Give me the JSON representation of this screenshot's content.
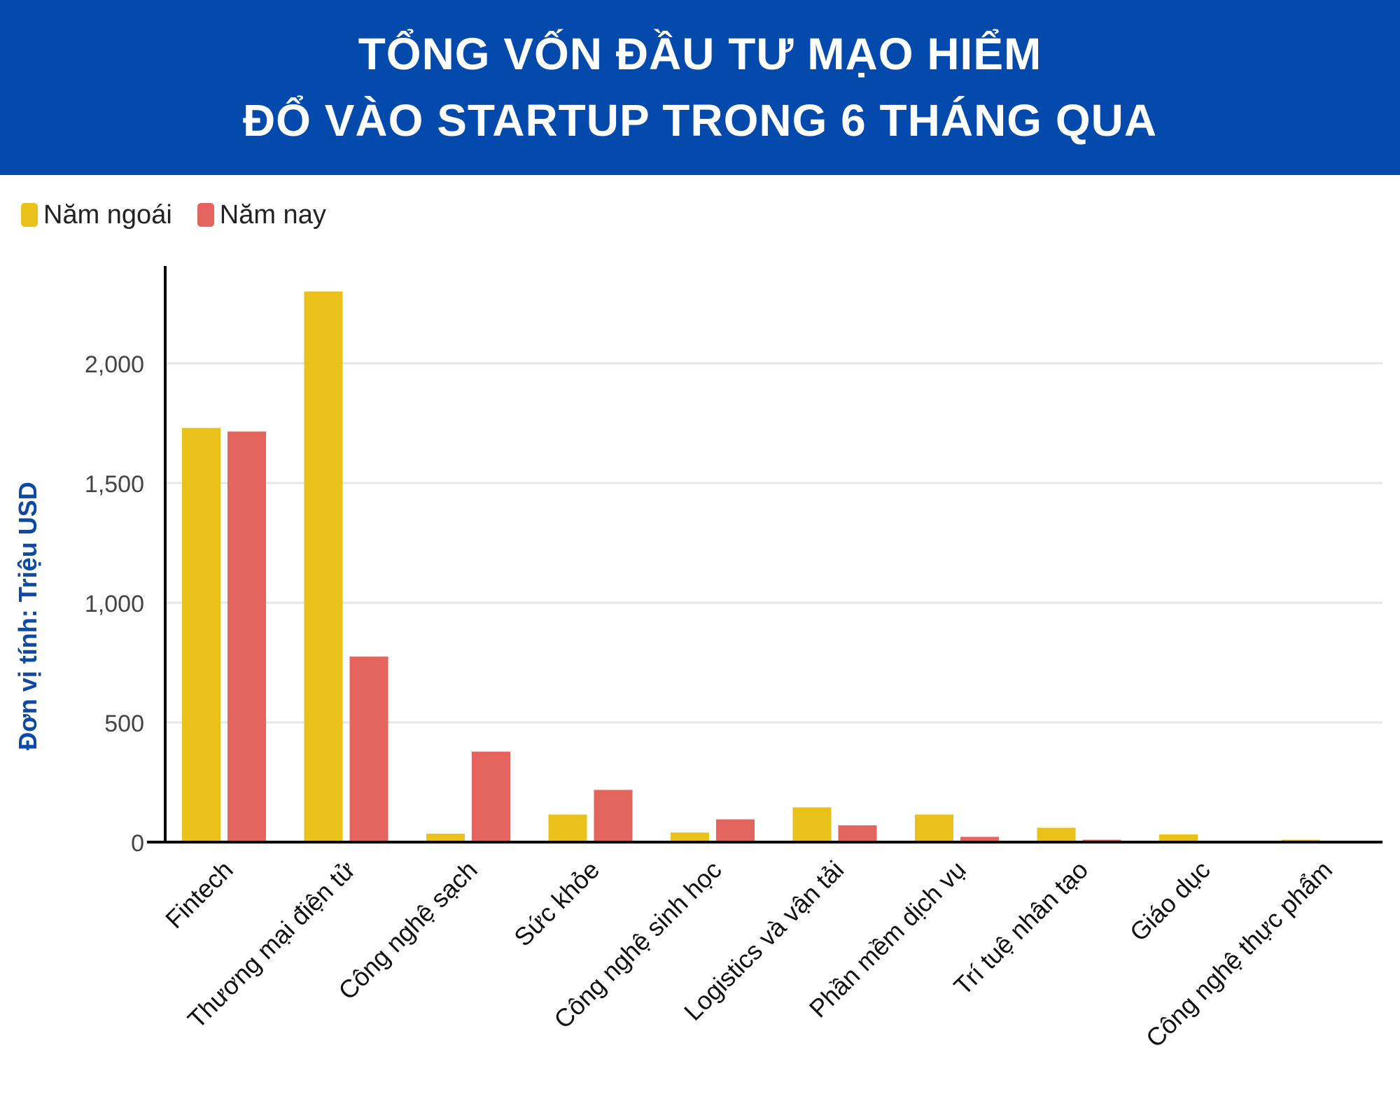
{
  "header": {
    "title_line1": "TỔNG VỐN ĐẦU TƯ MẠO HIỂM",
    "title_line2": "ĐỔ VÀO STARTUP TRONG 6 THÁNG QUA"
  },
  "colors": {
    "header_bg": "#044aad",
    "series_last_year": "#e9c11a",
    "series_this_year": "#e3655e",
    "ylabel": "#0d4aa5"
  },
  "chart_data": {
    "type": "bar",
    "title": "TỔNG VỐN ĐẦU TƯ MẠO HIỂM ĐỔ VÀO STARTUP TRONG 6 THÁNG QUA",
    "ylabel": "Đơn vị tính: Triệu USD",
    "xlabel": "",
    "ylim": [
      0,
      2400
    ],
    "yticks": [
      0,
      500,
      1000,
      1500,
      2000
    ],
    "ytick_labels": [
      "0",
      "500",
      "1,000",
      "1,500",
      "2,000"
    ],
    "grid": true,
    "legend_position": "top-left",
    "categories": [
      "Fintech",
      "Thương mại điện tử",
      "Công nghệ sạch",
      "Sức khỏe",
      "Công nghệ sinh học",
      "Logistics và vận tải",
      "Phần mềm dịch vụ",
      "Trí tuệ nhân tạo",
      "Giáo dục",
      "Công nghệ thực phẩm"
    ],
    "series": [
      {
        "name": "Năm ngoái",
        "color": "#e9c11a",
        "values": [
          1730,
          2300,
          35,
          115,
          40,
          145,
          115,
          60,
          32,
          10
        ]
      },
      {
        "name": "Năm nay",
        "color": "#e3655e",
        "values": [
          1715,
          775,
          378,
          218,
          95,
          70,
          22,
          10,
          4,
          2
        ]
      }
    ]
  }
}
